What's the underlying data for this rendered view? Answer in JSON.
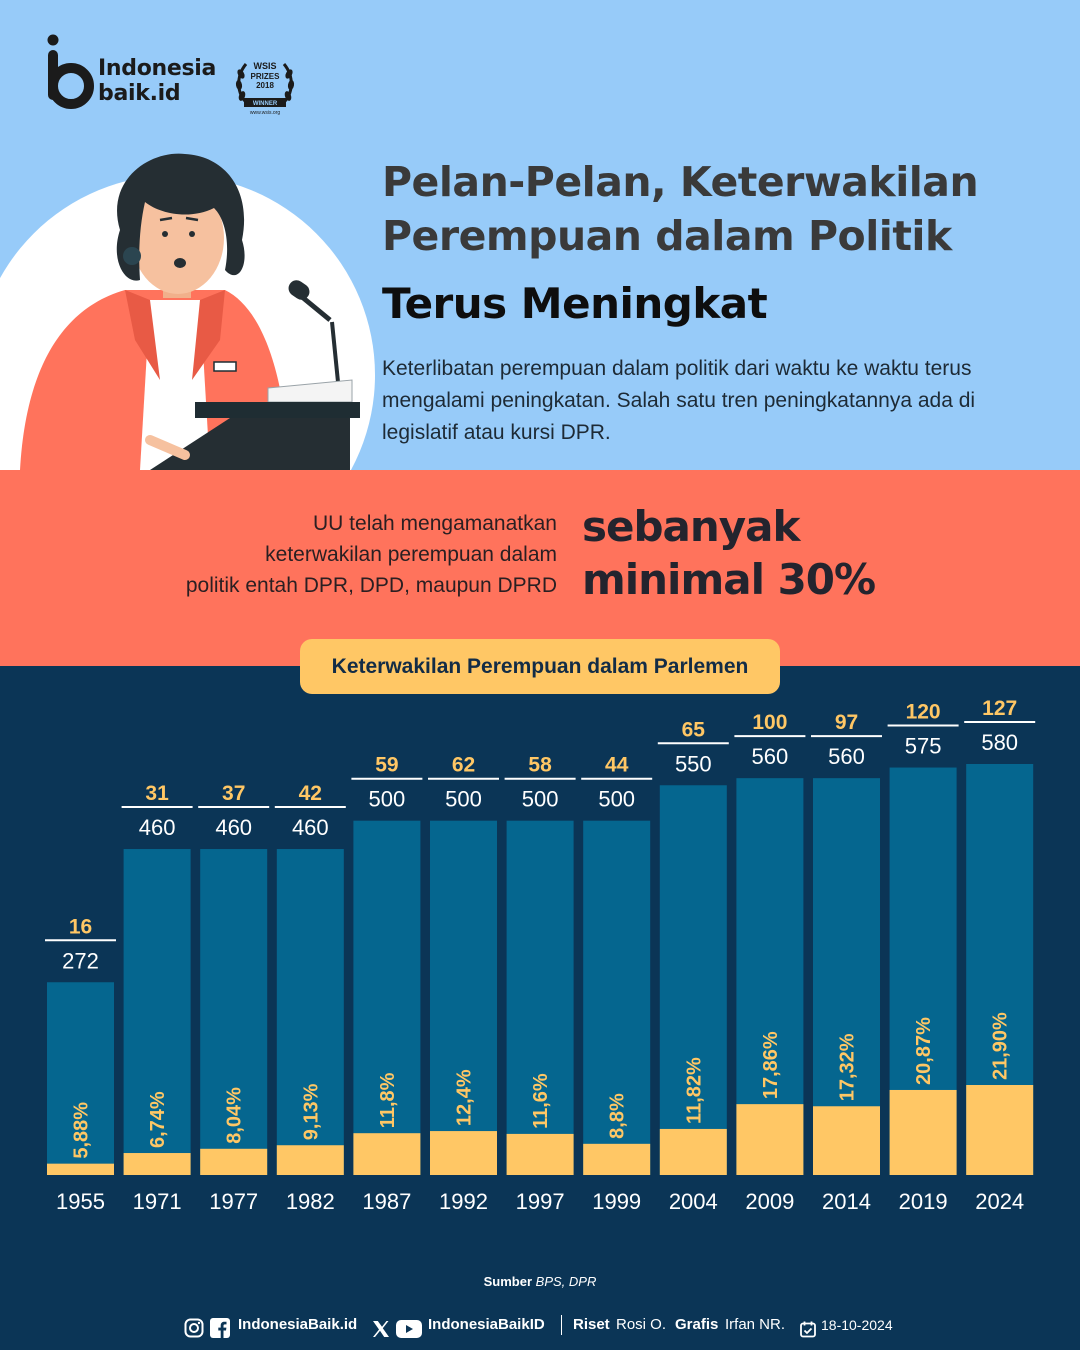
{
  "logo": {
    "line1": "Indonesia",
    "line2": "baik.id",
    "badge_text": [
      "WSIS",
      "PRIZES",
      "2018",
      "WINNER",
      "www.wsis.org"
    ]
  },
  "title": {
    "line1": "Pelan-Pelan, Keterwakilan",
    "line2": "Perempuan dalam Politik",
    "line3": "Terus Meningkat"
  },
  "intro": "Keterlibatan perempuan dalam politik dari waktu ke waktu terus mengalami peningkatan. Salah satu tren peningkatannya ada di legislatif atau kursi DPR.",
  "band": {
    "left_lines": [
      "UU telah mengamanatkan",
      "keterwakilan perempuan  dalam",
      "politik entah DPR, DPD, maupun DPRD"
    ],
    "big_line1": "sebanyak",
    "big_line2": "minimal 30%"
  },
  "chart_title": "Keterwakilan Perempuan dalam Parlemen",
  "chart_data": {
    "type": "bar",
    "title": "Keterwakilan Perempuan dalam Parlemen",
    "categories": [
      "1955",
      "1971",
      "1977",
      "1982",
      "1987",
      "1992",
      "1997",
      "1999",
      "2004",
      "2009",
      "2014",
      "2019",
      "2024"
    ],
    "series": [
      {
        "name": "",
        "values": [
          272,
          460,
          460,
          460,
          500,
          500,
          500,
          500,
          550,
          560,
          560,
          575,
          580
        ]
      },
      {
        "name": "",
        "values": [
          16,
          31,
          37,
          42,
          59,
          62,
          58,
          44,
          65,
          100,
          97,
          120,
          127
        ]
      }
    ],
    "percent_labels": [
      "5,88%",
      "6,74%",
      "8,04%",
      "9,13%",
      "11,8%",
      "12,4%",
      "11,6%",
      "8,8%",
      "11,82%",
      "17,86%",
      "17,32%",
      "20,87%",
      "21,90%"
    ],
    "ylim": [
      0,
      580
    ],
    "grid": false,
    "colors": {
      "total": "#05668f",
      "women": "#ffc765",
      "women_label": "#ffc765",
      "total_label": "#ffffff"
    }
  },
  "source": {
    "label": "Sumber",
    "value": "BPS, DPR"
  },
  "footer": {
    "handle1": "IndonesiaBaik.id",
    "handle2": "IndonesiaBaikID",
    "riset_label": "Riset",
    "riset_name": "Rosi O.",
    "grafis_label": "Grafis",
    "grafis_name": "Irfan NR.",
    "date": "18-10-2024",
    "icons": [
      "instagram-icon",
      "facebook-icon",
      "x-icon",
      "youtube-icon",
      "calendar-icon"
    ]
  },
  "colors": {
    "sky": "#97cbf9",
    "coral": "#ff735c",
    "navy": "#0b3556",
    "bar": "#05668f",
    "accent": "#ffc765"
  }
}
